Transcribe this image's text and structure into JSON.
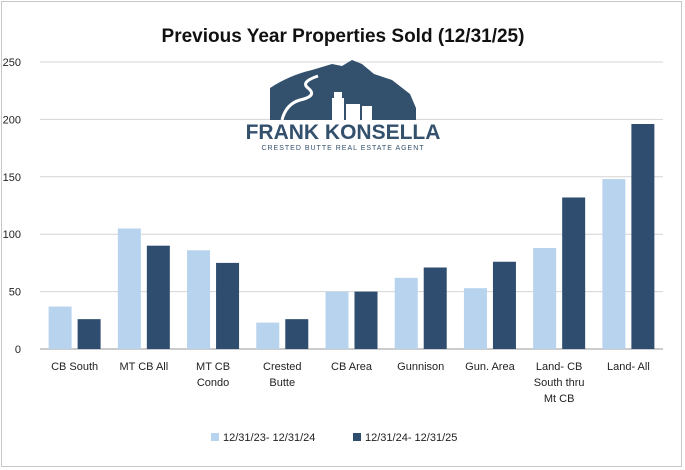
{
  "chart_data": {
    "type": "bar",
    "title": "Previous Year Properties Sold (12/31/25)",
    "categories": [
      [
        "CB South"
      ],
      [
        "MT CB All"
      ],
      [
        "MT CB",
        "Condo"
      ],
      [
        "Crested",
        "Butte"
      ],
      [
        "CB Area"
      ],
      [
        "Gunnison"
      ],
      [
        "Gun. Area"
      ],
      [
        "Land- CB",
        "South thru",
        "Mt CB"
      ],
      [
        "Land- All"
      ]
    ],
    "series": [
      {
        "name": "12/31/23- 12/31/24",
        "color": "#b8d3ee",
        "values": [
          37,
          105,
          86,
          23,
          50,
          62,
          53,
          88,
          148
        ]
      },
      {
        "name": "12/31/24- 12/31/25",
        "color": "#2f4d6e",
        "values": [
          26,
          90,
          75,
          26,
          50,
          71,
          76,
          132,
          196
        ]
      }
    ],
    "ylim": [
      0,
      250
    ],
    "yticks": [
      0,
      50,
      100,
      150,
      200,
      250
    ],
    "grid": true,
    "legend_position": "bottom"
  },
  "logo": {
    "name": "FRANK KONSELLA",
    "tagline": "CRESTED BUTTE REAL ESTATE AGENT",
    "icon": "mountain-town-logo"
  }
}
